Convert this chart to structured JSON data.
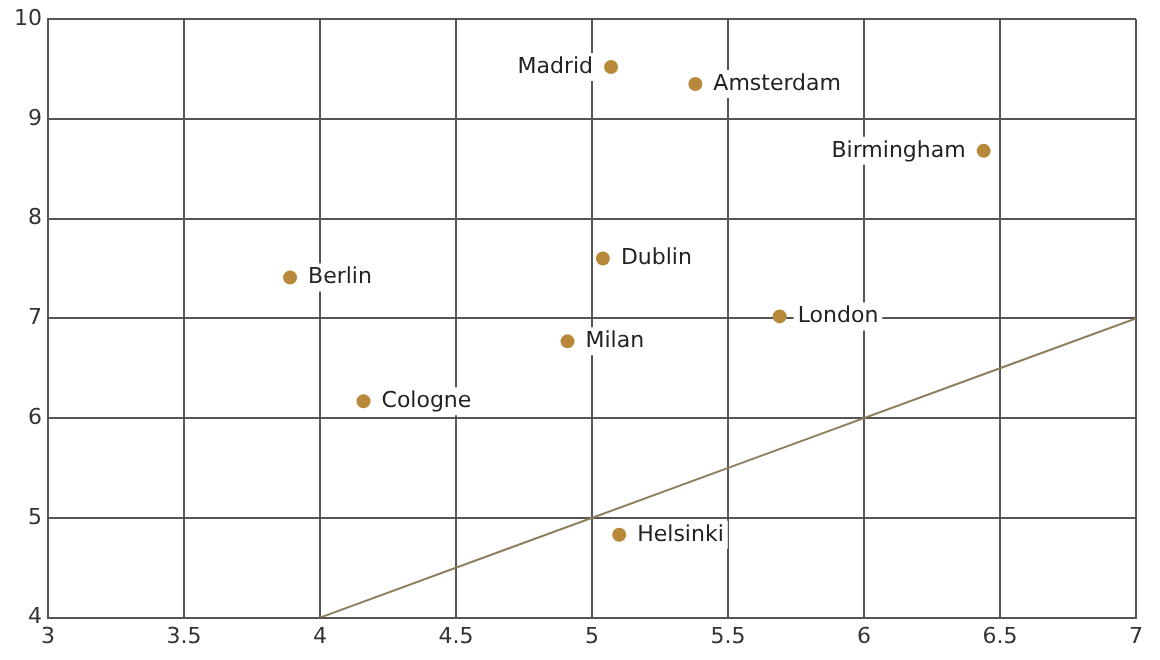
{
  "chart_data": {
    "type": "scatter",
    "xlim": [
      3,
      7
    ],
    "ylim": [
      4,
      10
    ],
    "xticks": [
      3,
      3.5,
      4,
      4.5,
      5,
      5.5,
      6,
      6.5,
      7
    ],
    "yticks": [
      4,
      5,
      6,
      7,
      8,
      9,
      10
    ],
    "grid": true,
    "legend": false,
    "marker": "circle",
    "series": [
      {
        "color": "#b8893a",
        "x": [
          5.07,
          5.38,
          6.44,
          3.89,
          5.04,
          5.69,
          4.91,
          4.16,
          5.1
        ],
        "values": [
          9.52,
          9.35,
          8.68,
          7.41,
          7.6,
          7.02,
          6.77,
          6.17,
          4.83
        ]
      },
      {
        "type": "line",
        "color": "#8c7b5c",
        "x": [
          4,
          7
        ],
        "values": [
          4,
          7
        ],
        "marker": "none",
        "line_style": "solid"
      }
    ],
    "annotations": [
      {
        "text": "Madrid",
        "x": 5.07,
        "y": 9.52
      },
      {
        "text": "Amsterdam",
        "x": 5.38,
        "y": 9.35
      },
      {
        "text": "Birmingham",
        "x": 6.44,
        "y": 8.68
      },
      {
        "text": "Berlin",
        "x": 3.89,
        "y": 7.41
      },
      {
        "text": "Dublin",
        "x": 5.04,
        "y": 7.6
      },
      {
        "text": "London",
        "x": 5.69,
        "y": 7.02
      },
      {
        "text": "Milan",
        "x": 4.91,
        "y": 6.77
      },
      {
        "text": "Cologne",
        "x": 4.16,
        "y": 6.17
      },
      {
        "text": "Helsinki",
        "x": 5.1,
        "y": 4.83
      }
    ]
  }
}
